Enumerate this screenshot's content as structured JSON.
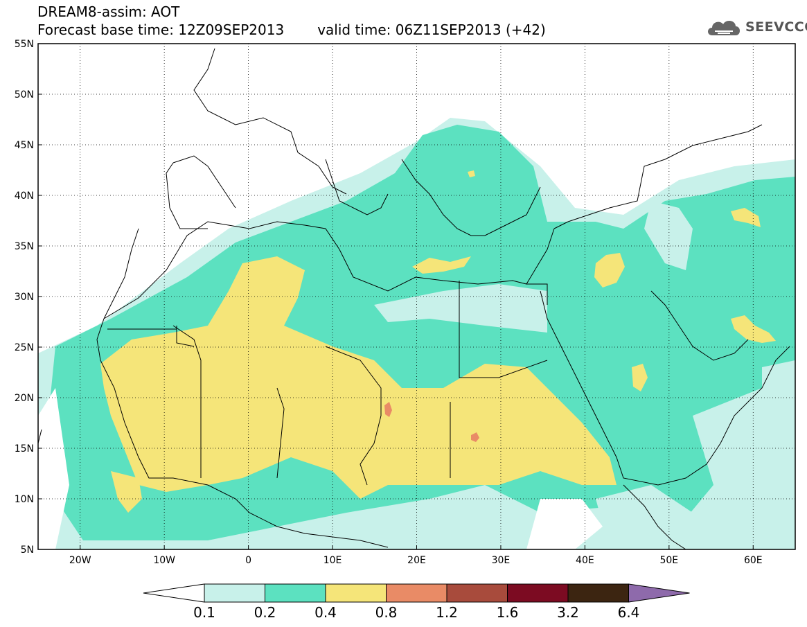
{
  "title": {
    "line1": "DREAM8-assim: AOT",
    "base_time": "Forecast base time: 12Z09SEP2013",
    "valid_time": "valid time: 06Z11SEP2013 (+42)"
  },
  "logo": {
    "text": "SEEVCCC",
    "icon": "cloud-icon"
  },
  "map": {
    "lon_range": [
      -25,
      65
    ],
    "lat_range": [
      5,
      55
    ],
    "lat_ticks": [
      "5N",
      "10N",
      "15N",
      "20N",
      "25N",
      "30N",
      "35N",
      "40N",
      "45N",
      "50N",
      "55N"
    ],
    "lon_ticks": [
      "20W",
      "10W",
      "0",
      "10E",
      "20E",
      "30E",
      "40E",
      "50E",
      "60E"
    ],
    "dotted_gridlines": true
  },
  "colorbar": {
    "levels": [
      "0.1",
      "0.2",
      "0.4",
      "0.8",
      "1.2",
      "1.6",
      "3.2",
      "6.4"
    ],
    "colors": [
      "#c8f1ea",
      "#5ce1c0",
      "#f5e579",
      "#e98b66",
      "#a84b3c",
      "#7c0b22",
      "#3c2511",
      "#8e6aab"
    ],
    "under_color": "#ffffff"
  },
  "field_colors": {
    "very_low": "#c8f1ea",
    "low": "#5ce1c0",
    "medium": "#f5e579",
    "high": "#e98b66"
  }
}
